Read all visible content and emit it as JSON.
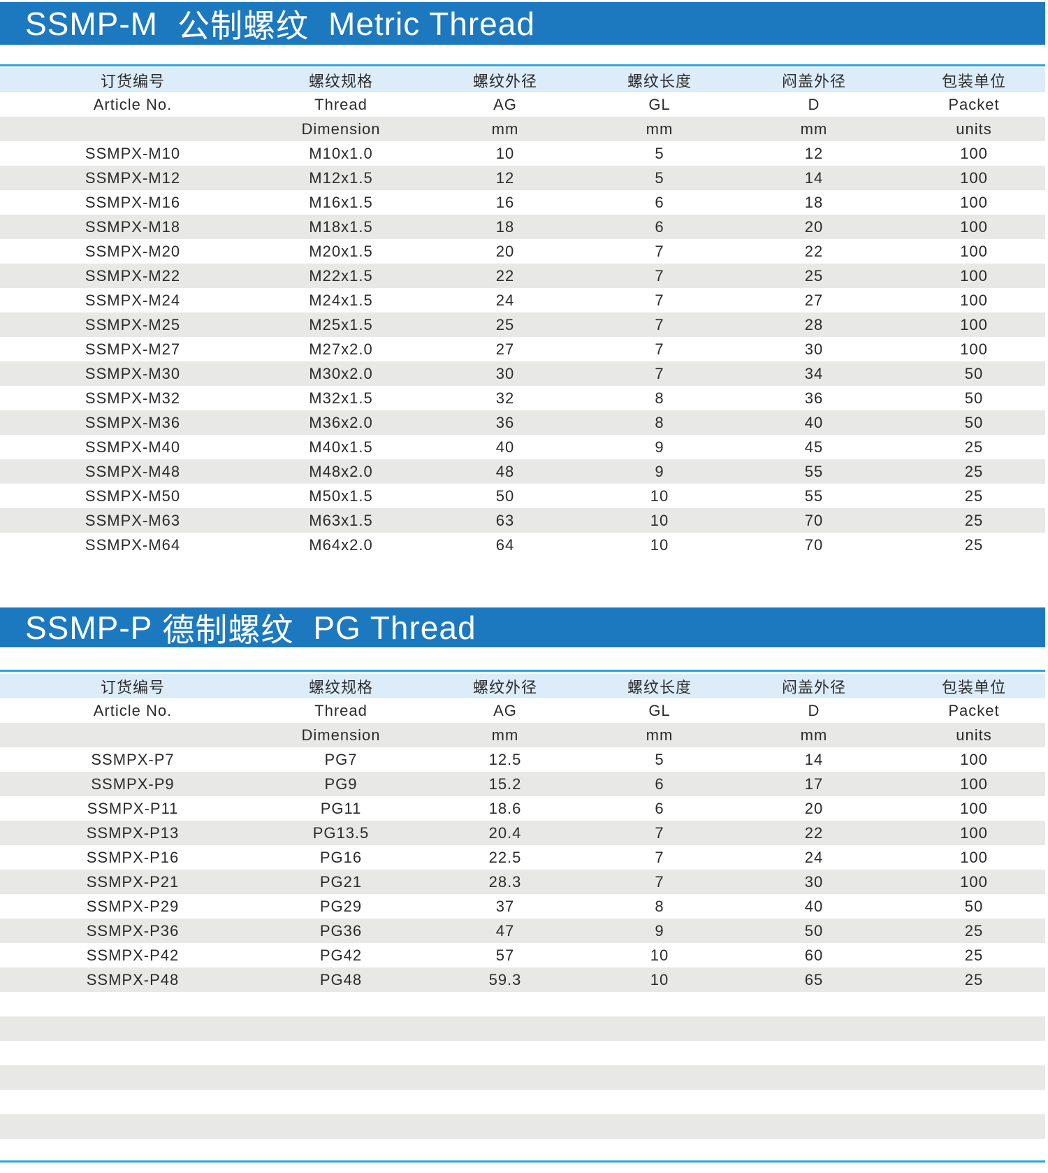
{
  "colors": {
    "banner": "#1c79c0",
    "rule": "#29a3e0",
    "header_row": "#dcedf9",
    "stripe": "#e8e8e6"
  },
  "header": {
    "row1": [
      "订货编号",
      "螺纹规格",
      "螺纹外径",
      "螺纹长度",
      "闷盖外径",
      "包装单位"
    ],
    "row2": [
      "Article No.",
      "Thread",
      "AG",
      "GL",
      "D",
      "Packet"
    ],
    "row3": [
      "",
      "Dimension",
      "mm",
      "mm",
      "mm",
      "units"
    ]
  },
  "metric": {
    "title_code": "SSMP-M",
    "title_cn": "公制螺纹",
    "title_en": "Metric Thread",
    "rows": [
      [
        "SSMPX-M10",
        "M10x1.0",
        "10",
        "5",
        "12",
        "100"
      ],
      [
        "SSMPX-M12",
        "M12x1.5",
        "12",
        "5",
        "14",
        "100"
      ],
      [
        "SSMPX-M16",
        "M16x1.5",
        "16",
        "6",
        "18",
        "100"
      ],
      [
        "SSMPX-M18",
        "M18x1.5",
        "18",
        "6",
        "20",
        "100"
      ],
      [
        "SSMPX-M20",
        "M20x1.5",
        "20",
        "7",
        "22",
        "100"
      ],
      [
        "SSMPX-M22",
        "M22x1.5",
        "22",
        "7",
        "25",
        "100"
      ],
      [
        "SSMPX-M24",
        "M24x1.5",
        "24",
        "7",
        "27",
        "100"
      ],
      [
        "SSMPX-M25",
        "M25x1.5",
        "25",
        "7",
        "28",
        "100"
      ],
      [
        "SSMPX-M27",
        "M27x2.0",
        "27",
        "7",
        "30",
        "100"
      ],
      [
        "SSMPX-M30",
        "M30x2.0",
        "30",
        "7",
        "34",
        "50"
      ],
      [
        "SSMPX-M32",
        "M32x1.5",
        "32",
        "8",
        "36",
        "50"
      ],
      [
        "SSMPX-M36",
        "M36x2.0",
        "36",
        "8",
        "40",
        "50"
      ],
      [
        "SSMPX-M40",
        "M40x1.5",
        "40",
        "9",
        "45",
        "25"
      ],
      [
        "SSMPX-M48",
        "M48x2.0",
        "48",
        "9",
        "55",
        "25"
      ],
      [
        "SSMPX-M50",
        "M50x1.5",
        "50",
        "10",
        "55",
        "25"
      ],
      [
        "SSMPX-M63",
        "M63x1.5",
        "63",
        "10",
        "70",
        "25"
      ],
      [
        "SSMPX-M64",
        "M64x2.0",
        "64",
        "10",
        "70",
        "25"
      ]
    ]
  },
  "pg": {
    "title_code": "SSMP-P",
    "title_cn": "德制螺纹",
    "title_en": "PG Thread",
    "rows": [
      [
        "SSMPX-P7",
        "PG7",
        "12.5",
        "5",
        "14",
        "100"
      ],
      [
        "SSMPX-P9",
        "PG9",
        "15.2",
        "6",
        "17",
        "100"
      ],
      [
        "SSMPX-P11",
        "PG11",
        "18.6",
        "6",
        "20",
        "100"
      ],
      [
        "SSMPX-P13",
        "PG13.5",
        "20.4",
        "7",
        "22",
        "100"
      ],
      [
        "SSMPX-P16",
        "PG16",
        "22.5",
        "7",
        "24",
        "100"
      ],
      [
        "SSMPX-P21",
        "PG21",
        "28.3",
        "7",
        "30",
        "100"
      ],
      [
        "SSMPX-P29",
        "PG29",
        "37",
        "8",
        "40",
        "50"
      ],
      [
        "SSMPX-P36",
        "PG36",
        "47",
        "9",
        "50",
        "25"
      ],
      [
        "SSMPX-P42",
        "PG42",
        "57",
        "10",
        "60",
        "25"
      ],
      [
        "SSMPX-P48",
        "PG48",
        "59.3",
        "10",
        "65",
        "25"
      ]
    ]
  }
}
